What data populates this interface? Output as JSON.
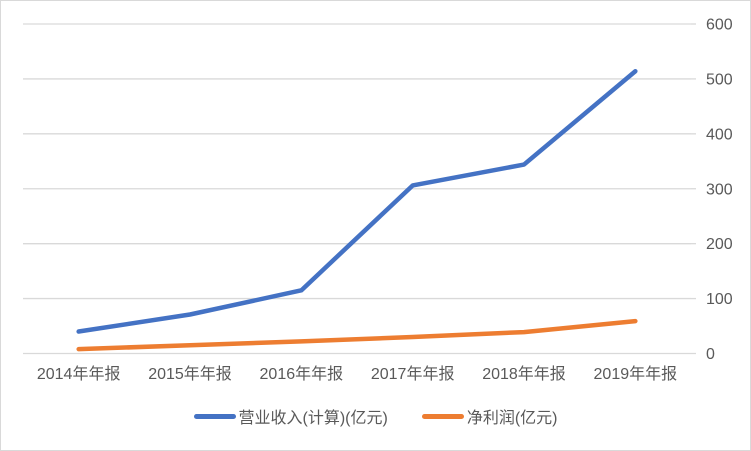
{
  "chart_data": {
    "type": "line",
    "categories": [
      "2014年年报",
      "2015年年报",
      "2016年年报",
      "2017年年报",
      "2018年年报",
      "2019年年报"
    ],
    "series": [
      {
        "key": "revenue",
        "name": "营业收入(计算)(亿元)",
        "color": "#4472C4",
        "values": [
          40,
          71,
          115,
          306,
          344,
          514
        ]
      },
      {
        "key": "net-profit",
        "name": "净利润(亿元)",
        "color": "#ED7D31",
        "values": [
          8,
          15,
          22,
          30,
          39,
          59
        ]
      }
    ],
    "title": "",
    "xlabel": "",
    "ylabel": "",
    "ylim": [
      0,
      600
    ],
    "ytick_interval": 100,
    "ytick_labels": [
      "0",
      "100",
      "200",
      "300",
      "400",
      "500",
      "600"
    ],
    "y_axis_side": "right",
    "grid": true,
    "legend_position": "bottom"
  },
  "colors": {
    "grid": "#D9D9D9",
    "tick_mark": "#D9D9D9",
    "axis_text": "#595959",
    "background": "#FFFFFF",
    "border": "#D9D9D9"
  }
}
